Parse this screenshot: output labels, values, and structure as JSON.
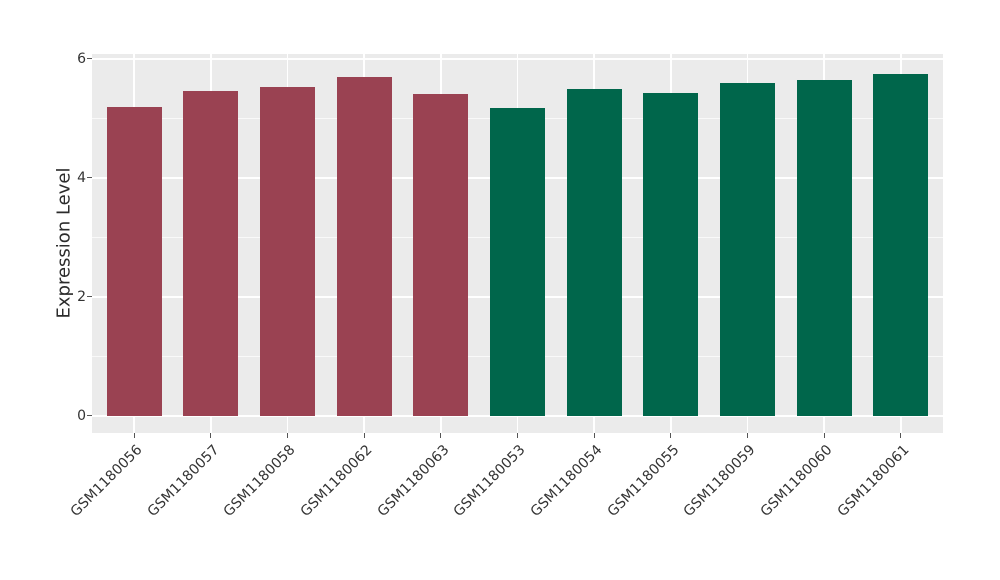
{
  "figure": {
    "background": "#ffffff",
    "plot_background": "#ebebeb",
    "grid_color": "#ffffff",
    "tick_color": "#555555",
    "text_color": "#333333"
  },
  "chart_data": {
    "type": "bar",
    "title": "",
    "xlabel": "",
    "ylabel": "Expression Level",
    "categories": [
      "GSM1180056",
      "GSM1180057",
      "GSM1180058",
      "GSM1180062",
      "GSM1180063",
      "GSM1180053",
      "GSM1180054",
      "GSM1180055",
      "GSM1180059",
      "GSM1180060",
      "GSM1180061"
    ],
    "values": [
      5.19,
      5.45,
      5.53,
      5.7,
      5.41,
      5.18,
      5.5,
      5.43,
      5.6,
      5.65,
      5.75
    ],
    "bar_colors": [
      "#9a4252",
      "#9a4252",
      "#9a4252",
      "#9a4252",
      "#9a4252",
      "#00664b",
      "#00664b",
      "#00664b",
      "#00664b",
      "#00664b",
      "#00664b"
    ],
    "group_colors": {
      "group_1": "#9a4252",
      "group_2": "#00664b"
    },
    "yticks": [
      0,
      2,
      4,
      6
    ],
    "ytick_labels": [
      "0",
      "2",
      "4",
      "6"
    ],
    "yticks_minor": [
      1,
      3,
      5
    ],
    "ylim": [
      -0.29,
      6.08
    ],
    "grid": true,
    "legend": "none",
    "x_tick_rotation": -45
  }
}
